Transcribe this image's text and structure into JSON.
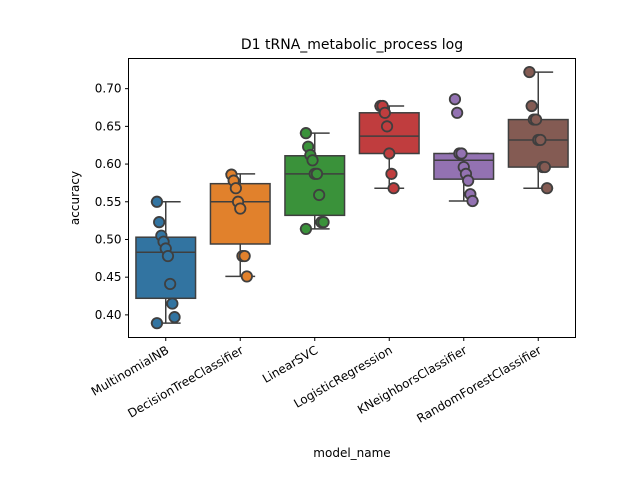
{
  "chart_data": {
    "type": "box",
    "title": "D1 tRNA_metabolic_process log",
    "xlabel": "model_name",
    "ylabel": "accuracy",
    "ylim": [
      0.37,
      0.74
    ],
    "yticks": [
      0.4,
      0.45,
      0.5,
      0.55,
      0.6,
      0.65,
      0.7
    ],
    "ytick_labels": [
      "0.40",
      "0.45",
      "0.50",
      "0.55",
      "0.60",
      "0.65",
      "0.70"
    ],
    "categories": [
      "MultinomialNB",
      "DecisionTreeClassifier",
      "LinearSVC",
      "LogisticRegression",
      "KNeighborsClassifier",
      "RandomForestClassifier"
    ],
    "grid": false,
    "legend": "none",
    "series": [
      {
        "category": "MultinomialNB",
        "color": "#3274a1",
        "whisker_low": 0.389,
        "q1": 0.422,
        "median": 0.483,
        "q3": 0.503,
        "whisker_high": 0.55,
        "points": [
          0.55,
          0.523,
          0.505,
          0.497,
          0.488,
          0.478,
          0.441,
          0.415,
          0.397,
          0.389
        ]
      },
      {
        "category": "DecisionTreeClassifier",
        "color": "#e1812c",
        "whisker_low": 0.451,
        "q1": 0.494,
        "median": 0.55,
        "q3": 0.574,
        "whisker_high": 0.587,
        "points": [
          0.586,
          0.578,
          0.568,
          0.55,
          0.541,
          0.478,
          0.478,
          0.451
        ]
      },
      {
        "category": "LinearSVC",
        "color": "#3a923a",
        "whisker_low": 0.514,
        "q1": 0.532,
        "median": 0.587,
        "q3": 0.611,
        "whisker_high": 0.641,
        "points": [
          0.641,
          0.623,
          0.612,
          0.605,
          0.587,
          0.587,
          0.559,
          0.523,
          0.523,
          0.514
        ]
      },
      {
        "category": "LogisticRegression",
        "color": "#c03d3e",
        "whisker_low": 0.568,
        "q1": 0.614,
        "median": 0.637,
        "q3": 0.668,
        "whisker_high": 0.677,
        "points": [
          0.677,
          0.677,
          0.668,
          0.65,
          0.614,
          0.587,
          0.568
        ]
      },
      {
        "category": "KNeighborsClassifier",
        "color": "#9372b2",
        "whisker_low": 0.551,
        "q1": 0.58,
        "median": 0.605,
        "q3": 0.614,
        "whisker_high": 0.614,
        "points": [
          0.686,
          0.668,
          0.614,
          0.614,
          0.596,
          0.587,
          0.578,
          0.56,
          0.551
        ]
      },
      {
        "category": "RandomForestClassifier",
        "color": "#845b53",
        "whisker_low": 0.568,
        "q1": 0.596,
        "median": 0.632,
        "q3": 0.659,
        "whisker_high": 0.722,
        "points": [
          0.722,
          0.677,
          0.659,
          0.659,
          0.632,
          0.632,
          0.596,
          0.596,
          0.568
        ]
      }
    ]
  }
}
